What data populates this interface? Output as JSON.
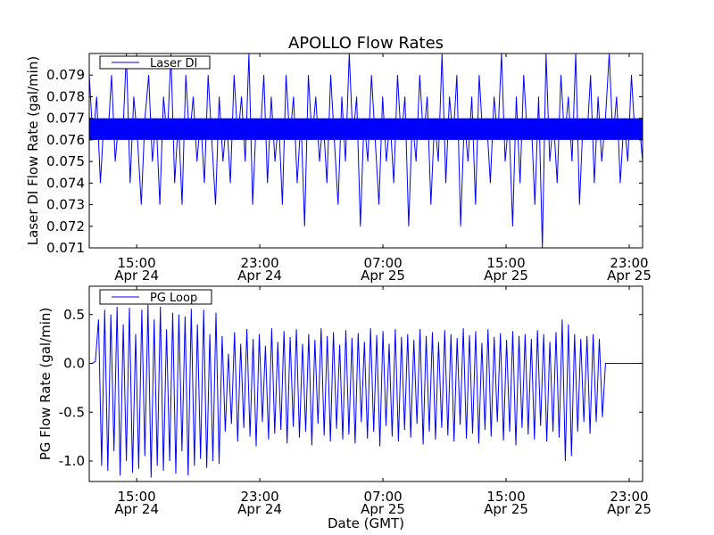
{
  "chart_data": [
    {
      "type": "line",
      "title": "APOLLO Flow Rates",
      "xlabel": "",
      "ylabel": "Laser DI Flow Rate (gal/min)",
      "x_unit": "hours since Apr 24 00:00 GMT",
      "xlim": [
        11.92,
        47.87
      ],
      "ylim": [
        0.071,
        0.08
      ],
      "yticks": [
        0.071,
        0.072,
        0.073,
        0.074,
        0.075,
        0.076,
        0.077,
        0.078,
        0.079
      ],
      "ytick_labels": [
        "0.071",
        "0.072",
        "0.073",
        "0.074",
        "0.075",
        "0.076",
        "0.077",
        "0.078",
        "0.079"
      ],
      "xticks": [
        15,
        23,
        31,
        39,
        47
      ],
      "xtick_labels": [
        [
          "15:00",
          "Apr 24"
        ],
        [
          "23:00",
          "Apr 24"
        ],
        [
          "07:00",
          "Apr 25"
        ],
        [
          "15:00",
          "Apr 25"
        ],
        [
          "23:00",
          "Apr 25"
        ]
      ],
      "grid": false,
      "legend": {
        "position": "top-left",
        "entries": [
          "Laser DI"
        ]
      },
      "typical_band": [
        0.076,
        0.077
      ],
      "series": [
        {
          "name": "Laser DI",
          "color": "#0000ff",
          "x_start": 11.92,
          "x_end": 47.87,
          "values": [
            0.079,
            0.076,
            0.078,
            0.074,
            0.077,
            0.076,
            0.079,
            0.075,
            0.077,
            0.076,
            0.08,
            0.074,
            0.078,
            0.076,
            0.073,
            0.077,
            0.079,
            0.075,
            0.077,
            0.073,
            0.078,
            0.076,
            0.08,
            0.074,
            0.077,
            0.073,
            0.079,
            0.076,
            0.078,
            0.075,
            0.077,
            0.074,
            0.079,
            0.076,
            0.073,
            0.078,
            0.075,
            0.077,
            0.074,
            0.079,
            0.076,
            0.078,
            0.075,
            0.08,
            0.073,
            0.077,
            0.076,
            0.079,
            0.074,
            0.078,
            0.075,
            0.077,
            0.073,
            0.079,
            0.076,
            0.078,
            0.074,
            0.077,
            0.072,
            0.079,
            0.076,
            0.078,
            0.075,
            0.077,
            0.074,
            0.079,
            0.076,
            0.073,
            0.078,
            0.075,
            0.08,
            0.076,
            0.078,
            0.072,
            0.077,
            0.075,
            0.079,
            0.076,
            0.073,
            0.078,
            0.075,
            0.077,
            0.074,
            0.079,
            0.076,
            0.078,
            0.072,
            0.077,
            0.075,
            0.079,
            0.076,
            0.078,
            0.073,
            0.077,
            0.075,
            0.08,
            0.074,
            0.078,
            0.076,
            0.079,
            0.072,
            0.077,
            0.075,
            0.078,
            0.073,
            0.079,
            0.076,
            0.077,
            0.074,
            0.078,
            0.076,
            0.08,
            0.075,
            0.077,
            0.072,
            0.078,
            0.074,
            0.079,
            0.076,
            0.077,
            0.073,
            0.078,
            0.071,
            0.08,
            0.075,
            0.077,
            0.074,
            0.079,
            0.076,
            0.078,
            0.075,
            0.08,
            0.073,
            0.077,
            0.076,
            0.079,
            0.074,
            0.078,
            0.075,
            0.077,
            0.08,
            0.076,
            0.078,
            0.074,
            0.077,
            0.075,
            0.079,
            0.076,
            0.077,
            0.075
          ]
        }
      ]
    },
    {
      "type": "line",
      "title": "",
      "xlabel": "Date (GMT)",
      "ylabel": "PG Flow Rate (gal/min)",
      "x_unit": "hours since Apr 24 00:00 GMT",
      "xlim": [
        11.92,
        47.87
      ],
      "ylim": [
        -1.21,
        0.79
      ],
      "yticks": [
        -1.0,
        -0.5,
        0.0,
        0.5
      ],
      "ytick_labels": [
        "-1.0",
        "-0.5",
        "0.0",
        "0.5"
      ],
      "xticks": [
        15,
        23,
        31,
        39,
        47
      ],
      "xtick_labels": [
        [
          "15:00",
          "Apr 24"
        ],
        [
          "23:00",
          "Apr 24"
        ],
        [
          "07:00",
          "Apr 25"
        ],
        [
          "15:00",
          "Apr 25"
        ],
        [
          "23:00",
          "Apr 25"
        ]
      ],
      "grid": false,
      "legend": {
        "position": "top-left",
        "entries": [
          "PG Loop"
        ]
      },
      "series": [
        {
          "name": "PG Loop",
          "color": "#0000ff",
          "x_start": 11.92,
          "x_end": 47.87,
          "values": [
            0.0,
            0.0,
            0.02,
            0.45,
            -1.05,
            0.55,
            -1.1,
            0.5,
            -0.9,
            0.58,
            -1.15,
            0.4,
            -1.0,
            0.57,
            -1.12,
            0.3,
            -1.08,
            0.55,
            -0.95,
            0.6,
            -1.17,
            0.45,
            -1.05,
            0.58,
            -1.1,
            0.35,
            -1.0,
            0.52,
            -1.13,
            0.5,
            -0.9,
            0.48,
            -1.15,
            0.56,
            -1.05,
            0.4,
            -0.98,
            0.55,
            -1.07,
            0.3,
            -1.0,
            0.52,
            -1.03,
            0.28,
            -0.7,
            0.1,
            -0.62,
            0.32,
            -0.8,
            0.2,
            -0.66,
            0.35,
            -0.75,
            0.25,
            -0.85,
            0.3,
            -0.6,
            0.18,
            -0.78,
            0.36,
            -0.72,
            0.22,
            -0.68,
            0.33,
            -0.82,
            0.27,
            -0.65,
            0.35,
            -0.76,
            0.2,
            -0.7,
            0.3,
            -0.84,
            0.24,
            -0.62,
            0.36,
            -0.74,
            0.28,
            -0.8,
            0.32,
            -0.67,
            0.19,
            -0.78,
            0.34,
            -0.73,
            0.26,
            -0.82,
            0.31,
            -0.6,
            0.22,
            -0.77,
            0.36,
            -0.7,
            0.29,
            -0.85,
            0.33,
            -0.64,
            0.2,
            -0.75,
            0.35,
            -0.8,
            0.27,
            -0.68,
            0.3,
            -0.76,
            0.24,
            -0.62,
            0.35,
            -0.83,
            0.28,
            -0.7,
            0.32,
            -0.78,
            0.22,
            -0.66,
            0.34,
            -0.74,
            0.3,
            -0.8,
            0.26,
            -0.63,
            0.36,
            -0.77,
            0.29,
            -0.72,
            0.33,
            -0.82,
            0.21,
            -0.68,
            0.35,
            -0.75,
            0.27,
            -0.6,
            0.31,
            -0.79,
            0.24,
            -0.7,
            0.33,
            -0.84,
            0.28,
            -0.66,
            0.3,
            -0.73,
            0.25,
            -0.78,
            0.34,
            -0.64,
            0.3,
            -0.8,
            0.22,
            -0.7,
            0.32,
            -0.76,
            0.45,
            -1.0,
            0.4,
            -0.95,
            0.3,
            -0.7,
            0.25,
            -0.6,
            0.28,
            -0.72,
            0.3,
            -0.6,
            0.25,
            -0.55,
            0.0,
            0.0,
            0.0,
            0.0,
            0.0,
            0.0,
            0.0,
            0.0,
            0.0,
            0.0,
            0.0,
            0.0,
            0.0
          ]
        }
      ]
    }
  ]
}
